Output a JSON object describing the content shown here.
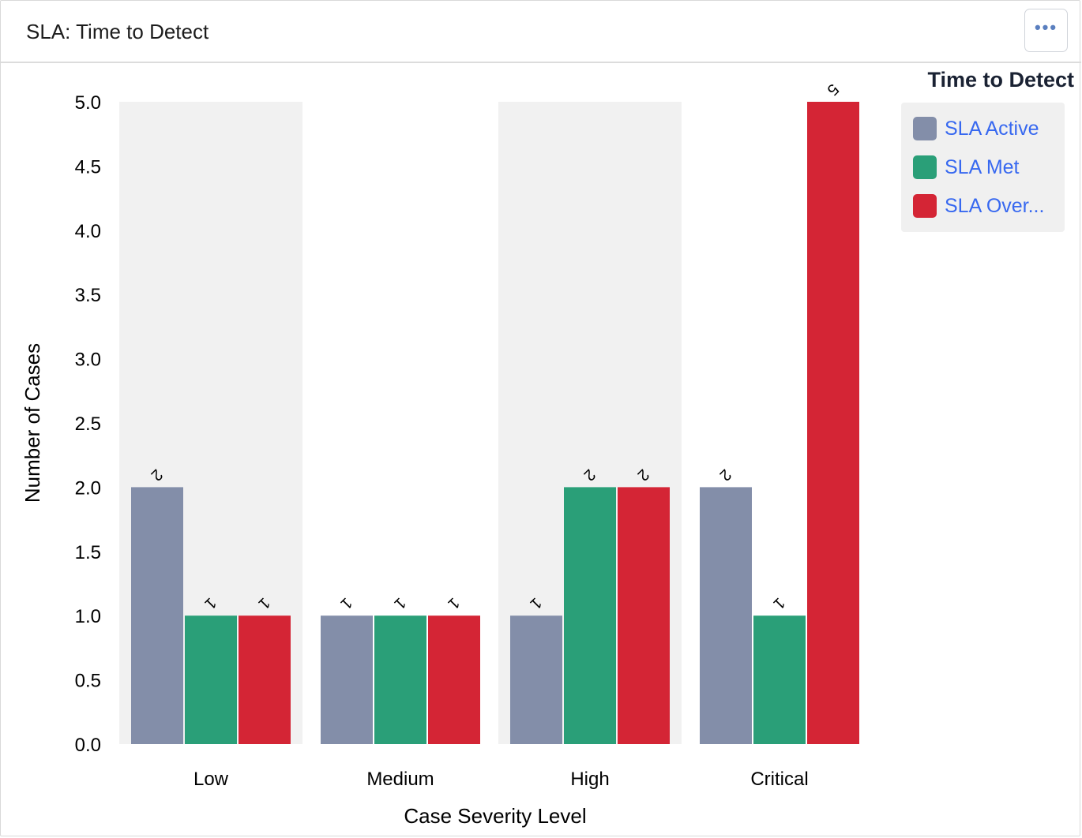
{
  "panel": {
    "title": "SLA: Time to Detect",
    "menu_icon": "more-horizontal-icon"
  },
  "colors": {
    "sla_active": "#838ea9",
    "sla_met": "#2a9f78",
    "sla_overdue": "#d42535",
    "band": "#f1f1f1",
    "legend_label": "#3768f0"
  },
  "legend": {
    "title": "Time to Detect",
    "items": [
      {
        "label": "SLA Active",
        "color": "#838ea9"
      },
      {
        "label": "SLA Met",
        "color": "#2a9f78"
      },
      {
        "label": "SLA Over...",
        "color": "#d42535"
      }
    ]
  },
  "chart_data": {
    "type": "bar",
    "categories": [
      "Low",
      "Medium",
      "High",
      "Critical"
    ],
    "series": [
      {
        "name": "SLA Active",
        "values": [
          2,
          1,
          1,
          2
        ],
        "color": "#838ea9"
      },
      {
        "name": "SLA Met",
        "values": [
          1,
          1,
          2,
          1
        ],
        "color": "#2a9f78"
      },
      {
        "name": "SLA Over...",
        "values": [
          1,
          1,
          2,
          5
        ],
        "color": "#d42535"
      }
    ],
    "xlabel": "Case Severity Level",
    "ylabel": "Number of Cases",
    "ylim": [
      0,
      5
    ],
    "yticks": [
      "0.0",
      "0.5",
      "1.0",
      "1.5",
      "2.0",
      "2.5",
      "3.0",
      "3.5",
      "4.0",
      "4.5",
      "5.0"
    ],
    "grid": false,
    "legend_position": "right",
    "data_labels": true,
    "alternating_bands": true
  }
}
